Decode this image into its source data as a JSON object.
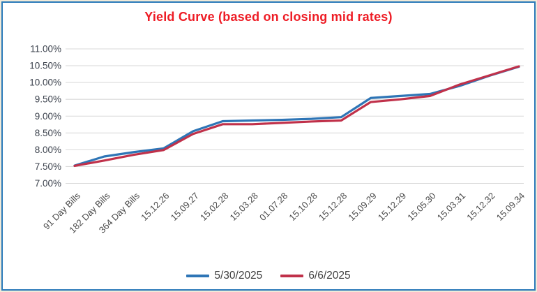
{
  "frame": {
    "outer_bg": "#f1ead9",
    "border_color": "#2a7ab9",
    "bg": "#ffffff"
  },
  "chart_data": {
    "type": "line",
    "title": "Yield Curve (based on closing mid rates)",
    "title_color": "#ee1c25",
    "categories": [
      "91 Day Bills",
      "182 Day Bills",
      "364 Day Bills",
      "15.12.26",
      "15.09.27",
      "15.02.28",
      "15.03.28",
      "01.07.28",
      "15.10.28",
      "15.12.28",
      "15.09.29",
      "15.12.29",
      "15.05.30",
      "15.03.31",
      "15.12.32",
      "15.09.34"
    ],
    "series": [
      {
        "name": "5/30/2025",
        "color": "#2e75b6",
        "values": [
          7.53,
          7.8,
          7.93,
          8.04,
          8.55,
          8.85,
          8.87,
          8.89,
          8.92,
          8.97,
          9.54,
          9.6,
          9.66,
          9.9,
          10.2,
          10.47
        ]
      },
      {
        "name": "6/6/2025",
        "color": "#c0314a",
        "values": [
          7.52,
          7.68,
          7.85,
          7.99,
          8.47,
          8.76,
          8.76,
          8.8,
          8.84,
          8.87,
          9.42,
          9.5,
          9.6,
          9.94,
          10.21,
          10.48
        ]
      }
    ],
    "y_ticks": [
      "11.00%",
      "10.50%",
      "10.00%",
      "9.50%",
      "9.00%",
      "8.50%",
      "8.00%",
      "7.50%",
      "7.00%"
    ],
    "ylim": [
      7.0,
      11.0
    ],
    "y_step": 0.5,
    "xlabel": "",
    "ylabel": "",
    "grid": "horizontal",
    "gridline_color": "#d9d9d9",
    "axis_label_color": "#3d434e",
    "category_label_color": "#4a4a4a",
    "legend_position": "bottom"
  }
}
